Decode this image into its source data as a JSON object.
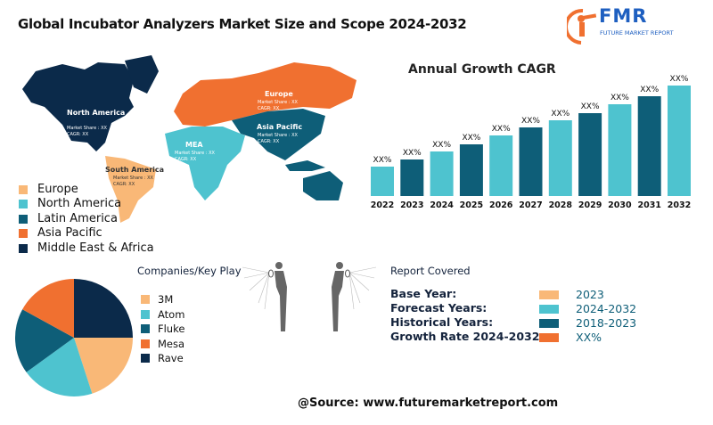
{
  "title": "Global Incubator Analyzers Market Size and Scope 2024-2032",
  "logo": {
    "text": "FMR",
    "subtext": "FUTURE MARKET REPORT",
    "color": "#1e5fc0",
    "accent": "#f07030"
  },
  "map": {
    "regions": [
      {
        "name": "North America",
        "market_share": "Market Share : XX",
        "cagr": "CAGR: XX",
        "color": "#0b2a4a"
      },
      {
        "name": "Europe",
        "market_share": "Market Share : XX",
        "cagr": "CAGR: XX",
        "color": "#f07030"
      },
      {
        "name": "Asia Pacific",
        "market_share": "Market Share : XX",
        "cagr": "CAGR: XX",
        "color": "#0e5e78"
      },
      {
        "name": "MEA",
        "market_share": "Market Share : XX",
        "cagr": "CAGR: XX",
        "color": "#4ec3cf"
      },
      {
        "name": "South America",
        "market_share": "Market Share : XX",
        "cagr": "CAGR: XX",
        "color": "#f9b877"
      }
    ],
    "legend": [
      {
        "label": "Europe",
        "color": "#f9b877"
      },
      {
        "label": "North America",
        "color": "#4ec3cf"
      },
      {
        "label": "Latin America",
        "color": "#0e5e78"
      },
      {
        "label": "Asia Pacific",
        "color": "#f07030"
      },
      {
        "label": "Middle East & Africa",
        "color": "#0b2a4a"
      }
    ]
  },
  "chart_data": [
    {
      "type": "bar",
      "title": "Annual Growth CAGR",
      "categories": [
        "2022",
        "2023",
        "2024",
        "2025",
        "2026",
        "2027",
        "2028",
        "2029",
        "2030",
        "2031",
        "2032"
      ],
      "values": [
        33,
        41,
        50,
        58,
        68,
        77,
        85,
        93,
        103,
        112,
        124
      ],
      "data_labels": [
        "XX%",
        "XX%",
        "XX%",
        "XX%",
        "XX%",
        "XX%",
        "XX%",
        "XX%",
        "XX%",
        "XX%",
        "XX%"
      ],
      "colors": [
        "#4ec3cf",
        "#0e5e78"
      ],
      "ylim": [
        0,
        124
      ],
      "grid": false
    },
    {
      "type": "pie",
      "title": "Companies/Key Play",
      "labels": [
        "3M",
        "Atom",
        "Fluke",
        "Mesa",
        "Rave"
      ],
      "values": [
        20,
        20,
        18,
        17,
        25
      ],
      "colors": [
        "#f9b877",
        "#4ec3cf",
        "#0e5e78",
        "#f07030",
        "#0b2a4a"
      ],
      "legend_placement": "right"
    }
  ],
  "report": {
    "title": "Report Covered",
    "rows": [
      {
        "label": "Base Year:",
        "value": "2023",
        "color": "#f9b877"
      },
      {
        "label": "Forecast Years:",
        "value": "2024-2032",
        "color": "#4ec3cf"
      },
      {
        "label": "Historical Years:",
        "value": "2018-2023",
        "color": "#0e5e78"
      },
      {
        "label": "Growth Rate 2024-2032:",
        "value": "XX%",
        "color": "#f07030"
      }
    ]
  },
  "source": "@Source: www.futuremarketreport.com"
}
